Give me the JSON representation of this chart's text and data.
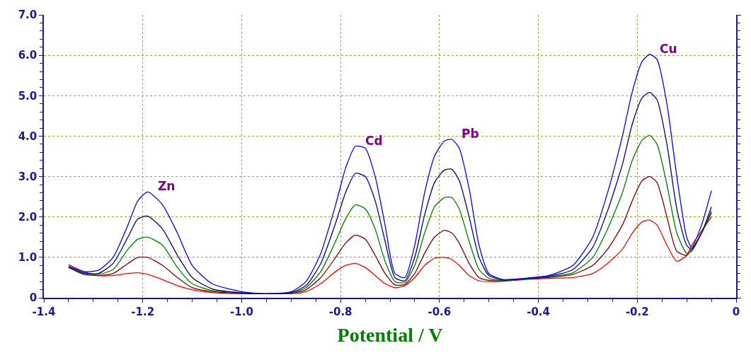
{
  "chart_data": {
    "type": "line",
    "xlabel": "Potential / V",
    "x": [
      -1.35,
      -1.32,
      -1.29,
      -1.26,
      -1.23,
      -1.21,
      -1.19,
      -1.16,
      -1.13,
      -1.1,
      -1.06,
      -1.0,
      -0.95,
      -0.9,
      -0.87,
      -0.84,
      -0.81,
      -0.79,
      -0.77,
      -0.75,
      -0.73,
      -0.71,
      -0.69,
      -0.67,
      -0.65,
      -0.63,
      -0.61,
      -0.59,
      -0.575,
      -0.56,
      -0.54,
      -0.52,
      -0.5,
      -0.47,
      -0.43,
      -0.38,
      -0.33,
      -0.29,
      -0.26,
      -0.23,
      -0.21,
      -0.19,
      -0.175,
      -0.16,
      -0.14,
      -0.12,
      -0.1,
      -0.09,
      -0.07,
      -0.05
    ],
    "series": [
      {
        "color": "#ff0000",
        "values": [
          0.82,
          0.65,
          0.55,
          0.55,
          0.6,
          0.62,
          0.58,
          0.45,
          0.3,
          0.2,
          0.13,
          0.1,
          0.1,
          0.1,
          0.15,
          0.35,
          0.65,
          0.8,
          0.85,
          0.75,
          0.55,
          0.35,
          0.25,
          0.3,
          0.5,
          0.8,
          0.98,
          1.0,
          0.95,
          0.8,
          0.55,
          0.42,
          0.4,
          0.41,
          0.45,
          0.48,
          0.5,
          0.6,
          0.85,
          1.2,
          1.6,
          1.88,
          1.92,
          1.8,
          1.3,
          0.9,
          1.05,
          1.3,
          1.65,
          2.0
        ]
      },
      {
        "color": "#800000",
        "values": [
          0.75,
          0.58,
          0.55,
          0.6,
          0.85,
          1.0,
          1.0,
          0.8,
          0.5,
          0.25,
          0.15,
          0.11,
          0.1,
          0.11,
          0.2,
          0.5,
          1.0,
          1.35,
          1.55,
          1.45,
          1.05,
          0.6,
          0.32,
          0.33,
          0.6,
          1.1,
          1.5,
          1.67,
          1.6,
          1.35,
          0.85,
          0.5,
          0.43,
          0.42,
          0.46,
          0.5,
          0.58,
          0.8,
          1.2,
          1.8,
          2.4,
          2.9,
          3.0,
          2.85,
          2.0,
          1.15,
          1.05,
          1.2,
          1.6,
          2.1
        ]
      },
      {
        "color": "#008000",
        "values": [
          0.75,
          0.6,
          0.58,
          0.7,
          1.2,
          1.45,
          1.5,
          1.3,
          0.75,
          0.35,
          0.18,
          0.12,
          0.1,
          0.12,
          0.25,
          0.65,
          1.4,
          1.95,
          2.3,
          2.2,
          1.7,
          0.9,
          0.4,
          0.38,
          0.8,
          1.6,
          2.25,
          2.48,
          2.48,
          2.2,
          1.4,
          0.7,
          0.48,
          0.43,
          0.46,
          0.52,
          0.62,
          1.0,
          1.7,
          2.6,
          3.4,
          3.9,
          4.02,
          3.8,
          2.8,
          1.6,
          1.1,
          1.15,
          1.6,
          2.15
        ]
      },
      {
        "color": "#000080",
        "values": [
          0.76,
          0.62,
          0.6,
          0.85,
          1.5,
          1.95,
          2.02,
          1.7,
          1.05,
          0.5,
          0.22,
          0.12,
          0.1,
          0.13,
          0.3,
          0.85,
          1.85,
          2.6,
          3.08,
          3.0,
          2.4,
          1.4,
          0.5,
          0.42,
          1.0,
          2.05,
          2.85,
          3.16,
          3.18,
          2.9,
          2.0,
          1.0,
          0.55,
          0.44,
          0.47,
          0.53,
          0.7,
          1.25,
          2.15,
          3.3,
          4.3,
          4.95,
          5.08,
          4.9,
          3.8,
          2.2,
          1.3,
          1.2,
          1.6,
          2.25
        ]
      },
      {
        "color": "#0000ff",
        "values": [
          0.78,
          0.65,
          0.68,
          1.0,
          1.8,
          2.4,
          2.62,
          2.3,
          1.6,
          0.8,
          0.35,
          0.15,
          0.1,
          0.15,
          0.4,
          1.1,
          2.3,
          3.2,
          3.75,
          3.7,
          3.0,
          1.8,
          0.6,
          0.5,
          1.3,
          2.6,
          3.5,
          3.88,
          3.92,
          3.7,
          2.7,
          1.3,
          0.6,
          0.45,
          0.48,
          0.55,
          0.8,
          1.5,
          2.6,
          4.0,
          5.1,
          5.85,
          6.02,
          5.9,
          4.8,
          3.0,
          1.5,
          1.25,
          1.8,
          2.65
        ]
      }
    ],
    "annotations": [
      {
        "text": "Zn",
        "x": -1.19,
        "y": 2.62
      },
      {
        "text": "Cd",
        "x": -0.77,
        "y": 3.75
      },
      {
        "text": "Pb",
        "x": -0.575,
        "y": 3.92
      },
      {
        "text": "Cu",
        "x": -0.175,
        "y": 6.02
      }
    ],
    "xlim": [
      -1.4,
      0
    ],
    "xticks": [
      -1.4,
      -1.2,
      {
        "value": -1,
        "label": "-1.0"
      },
      -0.8,
      -0.6,
      -0.4,
      -0.2,
      0
    ],
    "ylim": [
      0,
      7
    ],
    "yticks": [
      0,
      {
        "value": 1,
        "label": "1.0"
      },
      {
        "value": 2,
        "label": "2.0"
      },
      {
        "value": 3,
        "label": "3.0"
      },
      {
        "value": 4,
        "label": "4.0"
      },
      {
        "value": 5,
        "label": "5.0"
      },
      {
        "value": 6,
        "label": "6.0"
      },
      {
        "value": 7,
        "label": "7.0"
      }
    ],
    "grid": true,
    "line_style": "solid",
    "marker": "none"
  }
}
